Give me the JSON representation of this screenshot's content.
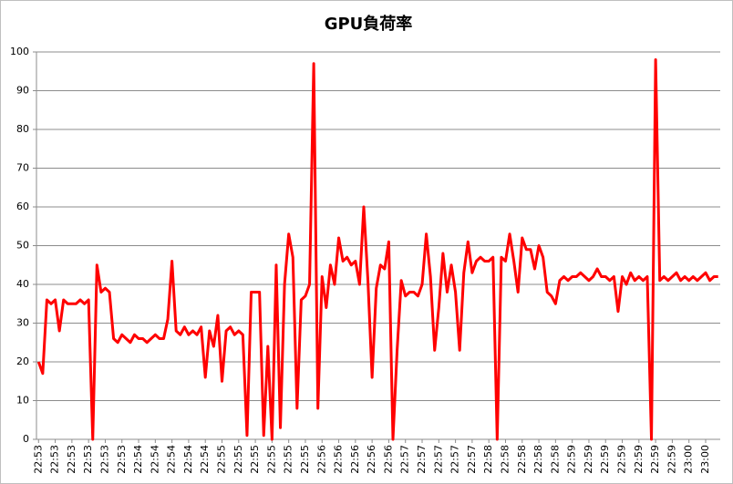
{
  "chart_data": {
    "type": "line",
    "title": "GPU負荷率",
    "categories": [
      "22:53",
      null,
      null,
      null,
      "22:53",
      null,
      null,
      null,
      "22:53",
      null,
      null,
      null,
      "22:53",
      null,
      null,
      null,
      "22:53",
      null,
      null,
      null,
      "22:53",
      null,
      null,
      null,
      "22:54",
      null,
      null,
      null,
      "22:54",
      null,
      null,
      null,
      "22:54",
      null,
      null,
      null,
      "22:54",
      null,
      null,
      null,
      "22:54",
      null,
      null,
      null,
      "22:55",
      null,
      null,
      null,
      "22:55",
      null,
      null,
      null,
      "22:55",
      null,
      null,
      null,
      "22:55",
      null,
      null,
      null,
      "22:55",
      null,
      null,
      null,
      "22:55",
      null,
      null,
      null,
      "22:56",
      null,
      null,
      null,
      "22:56",
      null,
      null,
      null,
      "22:56",
      null,
      null,
      null,
      "22:56",
      null,
      null,
      null,
      "22:56",
      null,
      null,
      null,
      "22:57",
      null,
      null,
      null,
      "22:57",
      null,
      null,
      null,
      "22:57",
      null,
      null,
      null,
      "22:57",
      null,
      null,
      null,
      "22:57",
      null,
      null,
      null,
      "22:58",
      null,
      null,
      null,
      "22:58",
      null,
      null,
      null,
      "22:58",
      null,
      null,
      null,
      "22:58",
      null,
      null,
      null,
      "22:58",
      null,
      null,
      null,
      "22:59",
      null,
      null,
      null,
      "22:59",
      null,
      null,
      null,
      "22:59",
      null,
      null,
      null,
      "22:59",
      null,
      null,
      null,
      "22:59",
      null,
      null,
      null,
      "22:59",
      null,
      null,
      null,
      "22:59",
      null,
      null,
      null,
      "23:00",
      null,
      null,
      null,
      "23:00",
      null,
      null,
      null
    ],
    "values": [
      20,
      17,
      36,
      35,
      36,
      28,
      36,
      35,
      35,
      35,
      36,
      35,
      36,
      0,
      45,
      38,
      39,
      38,
      26,
      25,
      27,
      26,
      25,
      27,
      26,
      26,
      25,
      26,
      27,
      26,
      26,
      31,
      46,
      28,
      27,
      29,
      27,
      28,
      27,
      29,
      16,
      28,
      24,
      32,
      15,
      28,
      29,
      27,
      28,
      27,
      1,
      38,
      38,
      38,
      1,
      24,
      0,
      45,
      3,
      40,
      53,
      47,
      8,
      36,
      37,
      40,
      97,
      8,
      42,
      34,
      45,
      40,
      52,
      46,
      47,
      45,
      46,
      40,
      60,
      41,
      16,
      39,
      45,
      44,
      51,
      0,
      23,
      41,
      37,
      38,
      38,
      37,
      40,
      53,
      42,
      23,
      34,
      48,
      38,
      45,
      38,
      23,
      43,
      51,
      43,
      46,
      47,
      46,
      46,
      47,
      0,
      47,
      46,
      53,
      46,
      38,
      52,
      49,
      49,
      44,
      50,
      47,
      38,
      37,
      35,
      41,
      42,
      41,
      42,
      42,
      43,
      42,
      41,
      42,
      44,
      42,
      42,
      41,
      42,
      33,
      42,
      40,
      43,
      41,
      42,
      41,
      42,
      0,
      98,
      41,
      42,
      41,
      42,
      43,
      41,
      42,
      41,
      42,
      41,
      42,
      43,
      41,
      42,
      42
    ],
    "color": "#ff0000",
    "ylim": [
      0,
      100
    ],
    "yticks": [
      0,
      10,
      20,
      30,
      40,
      50,
      60,
      70,
      80,
      90,
      100
    ],
    "grid": true
  }
}
